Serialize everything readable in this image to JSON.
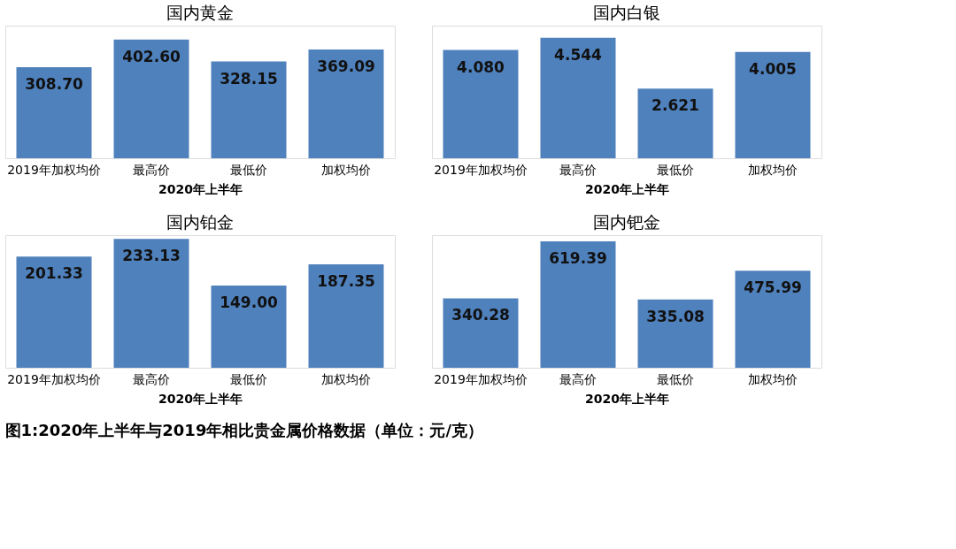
{
  "chart_data": [
    {
      "type": "bar",
      "title": "国内黄金",
      "xlabel": "2020年上半年",
      "categories": [
        "2019年加权均价",
        "最高价",
        "最低价",
        "加权均价"
      ],
      "values": [
        308.7,
        402.6,
        328.15,
        369.09
      ],
      "value_labels": [
        "308.70",
        "402.60",
        "328.15",
        "369.09"
      ],
      "color": "#4f81bd",
      "grid": false,
      "tick_labels": "x"
    },
    {
      "type": "bar",
      "title": "国内白银",
      "xlabel": "2020年上半年",
      "categories": [
        "2019年加权均价",
        "最高价",
        "最低价",
        "加权均价"
      ],
      "values": [
        4.08,
        4.544,
        2.621,
        4.005
      ],
      "value_labels": [
        "4.080",
        "4.544",
        "2.621",
        "4.005"
      ],
      "color": "#4f81bd",
      "grid": false,
      "tick_labels": "x"
    },
    {
      "type": "bar",
      "title": "国内铂金",
      "xlabel": "2020年上半年",
      "categories": [
        "2019年加权均价",
        "最高价",
        "最低价",
        "加权均价"
      ],
      "values": [
        201.33,
        233.13,
        149.0,
        187.35
      ],
      "value_labels": [
        "201.33",
        "233.13",
        "149.00",
        "187.35"
      ],
      "color": "#4f81bd",
      "grid": false,
      "tick_labels": "x"
    },
    {
      "type": "bar",
      "title": "国内钯金",
      "xlabel": "2020年上半年",
      "categories": [
        "2019年加权均价",
        "最高价",
        "最低价",
        "加权均价"
      ],
      "values": [
        340.28,
        619.39,
        335.08,
        475.99
      ],
      "value_labels": [
        "340.28",
        "619.39",
        "335.08",
        "475.99"
      ],
      "color": "#4f81bd",
      "grid": false,
      "tick_labels": "x",
      "annotations": [
        "图1:2020年上半年与2019年相比贵金属价格数据（单位：元/克）"
      ]
    }
  ]
}
